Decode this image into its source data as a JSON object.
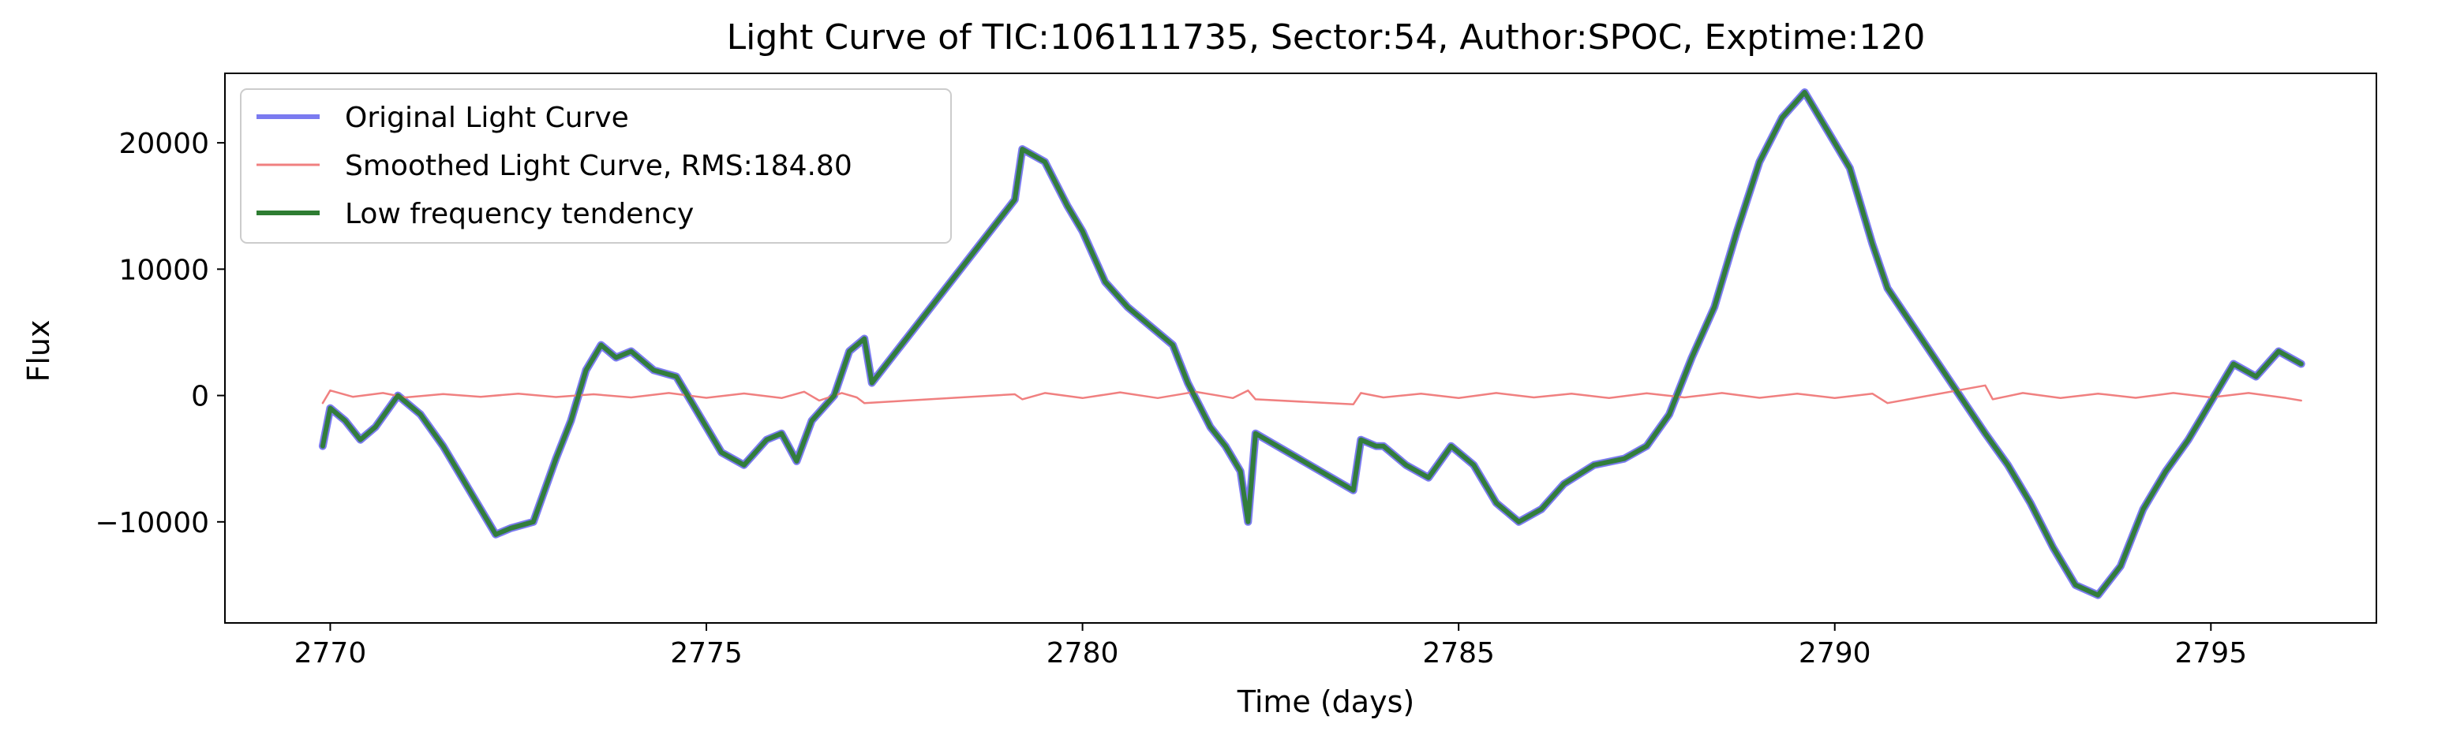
{
  "chart_data": {
    "type": "line",
    "title": "Light Curve of TIC:106111735, Sector:54, Author:SPOC, Exptime:120",
    "xlabel": "Time (days)",
    "ylabel": "Flux",
    "xlim": [
      2768.6,
      2797.2
    ],
    "ylim": [
      -18000,
      25500
    ],
    "xticks": [
      2770,
      2775,
      2780,
      2785,
      2790,
      2795
    ],
    "xtick_labels": [
      "2770",
      "2775",
      "2780",
      "2785",
      "2790",
      "2795"
    ],
    "yticks": [
      -10000,
      0,
      10000,
      20000
    ],
    "ytick_labels": [
      "−10000",
      "0",
      "10000",
      "20000"
    ],
    "grid": false,
    "legend_position": "top-left",
    "series": [
      {
        "name": "Original Light Curve",
        "color": "#7b7bf0",
        "points": [
          [
            2769.9,
            -4000
          ],
          [
            2770.0,
            -1000
          ],
          [
            2770.2,
            -2000
          ],
          [
            2770.4,
            -3500
          ],
          [
            2770.6,
            -2500
          ],
          [
            2770.9,
            0
          ],
          [
            2771.2,
            -1500
          ],
          [
            2771.5,
            -4000
          ],
          [
            2771.8,
            -7000
          ],
          [
            2772.0,
            -9000
          ],
          [
            2772.2,
            -11000
          ],
          [
            2772.4,
            -10500
          ],
          [
            2772.7,
            -10000
          ],
          [
            2773.0,
            -5000
          ],
          [
            2773.2,
            -2000
          ],
          [
            2773.4,
            2000
          ],
          [
            2773.6,
            4000
          ],
          [
            2773.8,
            3000
          ],
          [
            2774.0,
            3500
          ],
          [
            2774.3,
            2000
          ],
          [
            2774.6,
            1500
          ],
          [
            2774.8,
            -500
          ],
          [
            2775.0,
            -2500
          ],
          [
            2775.2,
            -4500
          ],
          [
            2775.5,
            -5500
          ],
          [
            2775.8,
            -3500
          ],
          [
            2776.0,
            -3000
          ],
          [
            2776.2,
            -5200
          ],
          [
            2776.4,
            -2000
          ],
          [
            2776.7,
            0
          ],
          [
            2776.9,
            3500
          ],
          [
            2777.1,
            4500
          ],
          [
            2777.2,
            1000
          ],
          [
            2779.1,
            15500
          ],
          [
            2779.2,
            19500
          ],
          [
            2779.5,
            18500
          ],
          [
            2779.8,
            15000
          ],
          [
            2780.0,
            13000
          ],
          [
            2780.3,
            9000
          ],
          [
            2780.6,
            7000
          ],
          [
            2780.9,
            5500
          ],
          [
            2781.2,
            4000
          ],
          [
            2781.4,
            1000
          ],
          [
            2781.7,
            -2500
          ],
          [
            2781.9,
            -4000
          ],
          [
            2782.1,
            -6000
          ],
          [
            2782.2,
            -10000
          ],
          [
            2782.3,
            -3000
          ],
          [
            2783.6,
            -7500
          ],
          [
            2783.7,
            -3500
          ],
          [
            2783.9,
            -4000
          ],
          [
            2784.0,
            -4000
          ],
          [
            2784.3,
            -5500
          ],
          [
            2784.6,
            -6500
          ],
          [
            2784.9,
            -4000
          ],
          [
            2785.2,
            -5500
          ],
          [
            2785.5,
            -8500
          ],
          [
            2785.8,
            -10000
          ],
          [
            2786.1,
            -9000
          ],
          [
            2786.4,
            -7000
          ],
          [
            2786.8,
            -5500
          ],
          [
            2787.2,
            -5000
          ],
          [
            2787.5,
            -4000
          ],
          [
            2787.8,
            -1500
          ],
          [
            2788.1,
            3000
          ],
          [
            2788.4,
            7000
          ],
          [
            2788.7,
            13000
          ],
          [
            2789.0,
            18500
          ],
          [
            2789.3,
            22000
          ],
          [
            2789.6,
            24000
          ],
          [
            2789.9,
            21000
          ],
          [
            2790.2,
            18000
          ],
          [
            2790.5,
            12000
          ],
          [
            2790.7,
            8500
          ],
          [
            2792.0,
            -3000
          ],
          [
            2792.3,
            -5500
          ],
          [
            2792.6,
            -8500
          ],
          [
            2792.9,
            -12000
          ],
          [
            2793.2,
            -15000
          ],
          [
            2793.5,
            -15800
          ],
          [
            2793.8,
            -13500
          ],
          [
            2794.1,
            -9000
          ],
          [
            2794.4,
            -6000
          ],
          [
            2794.7,
            -3500
          ],
          [
            2795.0,
            -500
          ],
          [
            2795.3,
            2500
          ],
          [
            2795.6,
            1500
          ],
          [
            2795.9,
            3500
          ],
          [
            2796.2,
            2500
          ]
        ]
      },
      {
        "name": "Smoothed Light Curve, RMS:184.80",
        "color": "#f08080",
        "points": [
          [
            2769.9,
            -600
          ],
          [
            2770.0,
            400
          ],
          [
            2770.3,
            -100
          ],
          [
            2770.7,
            200
          ],
          [
            2771.0,
            -150
          ],
          [
            2771.5,
            120
          ],
          [
            2772.0,
            -100
          ],
          [
            2772.5,
            150
          ],
          [
            2773.0,
            -120
          ],
          [
            2773.5,
            100
          ],
          [
            2774.0,
            -150
          ],
          [
            2774.5,
            200
          ],
          [
            2775.0,
            -180
          ],
          [
            2775.5,
            160
          ],
          [
            2776.0,
            -200
          ],
          [
            2776.3,
            300
          ],
          [
            2776.5,
            -400
          ],
          [
            2776.8,
            200
          ],
          [
            2777.0,
            -150
          ],
          [
            2777.1,
            -600
          ],
          [
            2779.1,
            100
          ],
          [
            2779.2,
            -300
          ],
          [
            2779.5,
            200
          ],
          [
            2780.0,
            -200
          ],
          [
            2780.5,
            250
          ],
          [
            2781.0,
            -200
          ],
          [
            2781.5,
            300
          ],
          [
            2782.0,
            -200
          ],
          [
            2782.2,
            400
          ],
          [
            2782.3,
            -300
          ],
          [
            2783.6,
            -700
          ],
          [
            2783.7,
            200
          ],
          [
            2784.0,
            -150
          ],
          [
            2784.5,
            150
          ],
          [
            2785.0,
            -200
          ],
          [
            2785.5,
            200
          ],
          [
            2786.0,
            -150
          ],
          [
            2786.5,
            150
          ],
          [
            2787.0,
            -200
          ],
          [
            2787.5,
            180
          ],
          [
            2788.0,
            -150
          ],
          [
            2788.5,
            200
          ],
          [
            2789.0,
            -180
          ],
          [
            2789.5,
            150
          ],
          [
            2790.0,
            -200
          ],
          [
            2790.5,
            150
          ],
          [
            2790.7,
            -600
          ],
          [
            2792.0,
            800
          ],
          [
            2792.1,
            -300
          ],
          [
            2792.5,
            200
          ],
          [
            2793.0,
            -200
          ],
          [
            2793.5,
            150
          ],
          [
            2794.0,
            -180
          ],
          [
            2794.5,
            200
          ],
          [
            2795.0,
            -150
          ],
          [
            2795.5,
            200
          ],
          [
            2796.0,
            -200
          ],
          [
            2796.2,
            -400
          ]
        ]
      },
      {
        "name": "Low frequency tendency",
        "color": "#2e7d32",
        "points": [
          [
            2769.9,
            -4000
          ],
          [
            2770.0,
            -1000
          ],
          [
            2770.2,
            -2000
          ],
          [
            2770.4,
            -3500
          ],
          [
            2770.6,
            -2500
          ],
          [
            2770.9,
            0
          ],
          [
            2771.2,
            -1500
          ],
          [
            2771.5,
            -4000
          ],
          [
            2771.8,
            -7000
          ],
          [
            2772.0,
            -9000
          ],
          [
            2772.2,
            -11000
          ],
          [
            2772.4,
            -10500
          ],
          [
            2772.7,
            -10000
          ],
          [
            2773.0,
            -5000
          ],
          [
            2773.2,
            -2000
          ],
          [
            2773.4,
            2000
          ],
          [
            2773.6,
            4000
          ],
          [
            2773.8,
            3000
          ],
          [
            2774.0,
            3500
          ],
          [
            2774.3,
            2000
          ],
          [
            2774.6,
            1500
          ],
          [
            2774.8,
            -500
          ],
          [
            2775.0,
            -2500
          ],
          [
            2775.2,
            -4500
          ],
          [
            2775.5,
            -5500
          ],
          [
            2775.8,
            -3500
          ],
          [
            2776.0,
            -3000
          ],
          [
            2776.2,
            -5200
          ],
          [
            2776.4,
            -2000
          ],
          [
            2776.7,
            0
          ],
          [
            2776.9,
            3500
          ],
          [
            2777.1,
            4500
          ],
          [
            2777.2,
            1000
          ],
          [
            2779.1,
            15500
          ],
          [
            2779.2,
            19500
          ],
          [
            2779.5,
            18500
          ],
          [
            2779.8,
            15000
          ],
          [
            2780.0,
            13000
          ],
          [
            2780.3,
            9000
          ],
          [
            2780.6,
            7000
          ],
          [
            2780.9,
            5500
          ],
          [
            2781.2,
            4000
          ],
          [
            2781.4,
            1000
          ],
          [
            2781.7,
            -2500
          ],
          [
            2781.9,
            -4000
          ],
          [
            2782.1,
            -6000
          ],
          [
            2782.2,
            -10000
          ],
          [
            2782.3,
            -3000
          ],
          [
            2783.6,
            -7500
          ],
          [
            2783.7,
            -3500
          ],
          [
            2783.9,
            -4000
          ],
          [
            2784.0,
            -4000
          ],
          [
            2784.3,
            -5500
          ],
          [
            2784.6,
            -6500
          ],
          [
            2784.9,
            -4000
          ],
          [
            2785.2,
            -5500
          ],
          [
            2785.5,
            -8500
          ],
          [
            2785.8,
            -10000
          ],
          [
            2786.1,
            -9000
          ],
          [
            2786.4,
            -7000
          ],
          [
            2786.8,
            -5500
          ],
          [
            2787.2,
            -5000
          ],
          [
            2787.5,
            -4000
          ],
          [
            2787.8,
            -1500
          ],
          [
            2788.1,
            3000
          ],
          [
            2788.4,
            7000
          ],
          [
            2788.7,
            13000
          ],
          [
            2789.0,
            18500
          ],
          [
            2789.3,
            22000
          ],
          [
            2789.6,
            24000
          ],
          [
            2789.9,
            21000
          ],
          [
            2790.2,
            18000
          ],
          [
            2790.5,
            12000
          ],
          [
            2790.7,
            8500
          ],
          [
            2792.0,
            -3000
          ],
          [
            2792.3,
            -5500
          ],
          [
            2792.6,
            -8500
          ],
          [
            2792.9,
            -12000
          ],
          [
            2793.2,
            -15000
          ],
          [
            2793.5,
            -15800
          ],
          [
            2793.8,
            -13500
          ],
          [
            2794.1,
            -9000
          ],
          [
            2794.4,
            -6000
          ],
          [
            2794.7,
            -3500
          ],
          [
            2795.0,
            -500
          ],
          [
            2795.3,
            2500
          ],
          [
            2795.6,
            1500
          ],
          [
            2795.9,
            3500
          ],
          [
            2796.2,
            2500
          ]
        ]
      }
    ]
  }
}
